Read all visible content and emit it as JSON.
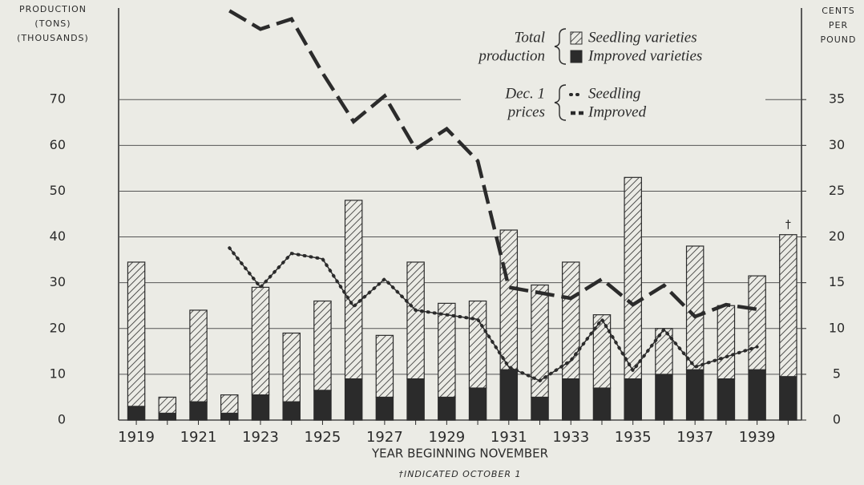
{
  "chart_data": {
    "type": "bar",
    "axis_label_left": [
      "PRODUCTION",
      "(TONS)",
      "(THOUSANDS)"
    ],
    "axis_label_right": [
      "CENTS",
      "PER",
      "POUND"
    ],
    "xlabel": "YEAR BEGINNING NOVEMBER",
    "footnote": "†INDICATED OCTOBER 1",
    "annotation": {
      "text": "†",
      "category_index": 21
    },
    "legend_groups": [
      {
        "lines": [
          "Total",
          "production"
        ],
        "series": [
          0,
          1
        ]
      },
      {
        "lines": [
          "Dec. 1",
          "prices"
        ],
        "series": [
          2,
          3
        ]
      }
    ],
    "categories": [
      "1919",
      null,
      "1921",
      null,
      "1923",
      null,
      "1925",
      null,
      "1927",
      null,
      "1929",
      null,
      "1931",
      null,
      "1933",
      null,
      "1935",
      null,
      "1937",
      null,
      "1939",
      null
    ],
    "series": [
      {
        "name": "Seedling varieties",
        "type": "bar",
        "stack_order": 1,
        "color": "#2b2b2b",
        "pattern": "hatch",
        "values": [
          31.5,
          3.5,
          20,
          4,
          23.5,
          15,
          19.5,
          39,
          13.5,
          25.5,
          20.5,
          19,
          30.5,
          24.5,
          25.5,
          16,
          44,
          10,
          27,
          16,
          20.5,
          31
        ]
      },
      {
        "name": "Improved varieties",
        "type": "bar",
        "stack_order": 0,
        "color": "#2b2b2b",
        "pattern": "solid",
        "values": [
          3,
          1.5,
          4,
          1.5,
          5.5,
          4,
          6.5,
          9,
          5,
          9,
          5,
          7,
          11,
          5,
          9,
          7,
          9,
          10,
          11,
          9,
          11,
          9.5
        ]
      },
      {
        "name": "Seedling",
        "type": "line",
        "axis": "y2",
        "color": "#2b2b2b",
        "style": "dotted",
        "values": [
          null,
          null,
          null,
          18.8,
          14.5,
          18.2,
          17.6,
          12.4,
          15.4,
          12.0,
          11.5,
          11.0,
          5.8,
          4.3,
          6.5,
          11.0,
          5.4,
          9.9,
          5.8,
          6.9,
          8.0,
          null
        ]
      },
      {
        "name": "Improved",
        "type": "line",
        "axis": "y2",
        "color": "#2b2b2b",
        "style": "dashed",
        "values": [
          null,
          null,
          null,
          44.7,
          42.7,
          43.8,
          37.9,
          32.6,
          35.4,
          29.6,
          31.8,
          28.3,
          14.5,
          13.9,
          13.3,
          15.4,
          12.6,
          14.7,
          11.3,
          12.6,
          12.1,
          null
        ]
      }
    ],
    "ylim": [
      0,
      90
    ],
    "yticks": [
      0,
      10,
      20,
      30,
      40,
      50,
      60,
      70
    ],
    "y2lim": [
      0,
      45
    ],
    "y2ticks": [
      0,
      5,
      10,
      15,
      20,
      25,
      30,
      35
    ],
    "grid": true
  }
}
